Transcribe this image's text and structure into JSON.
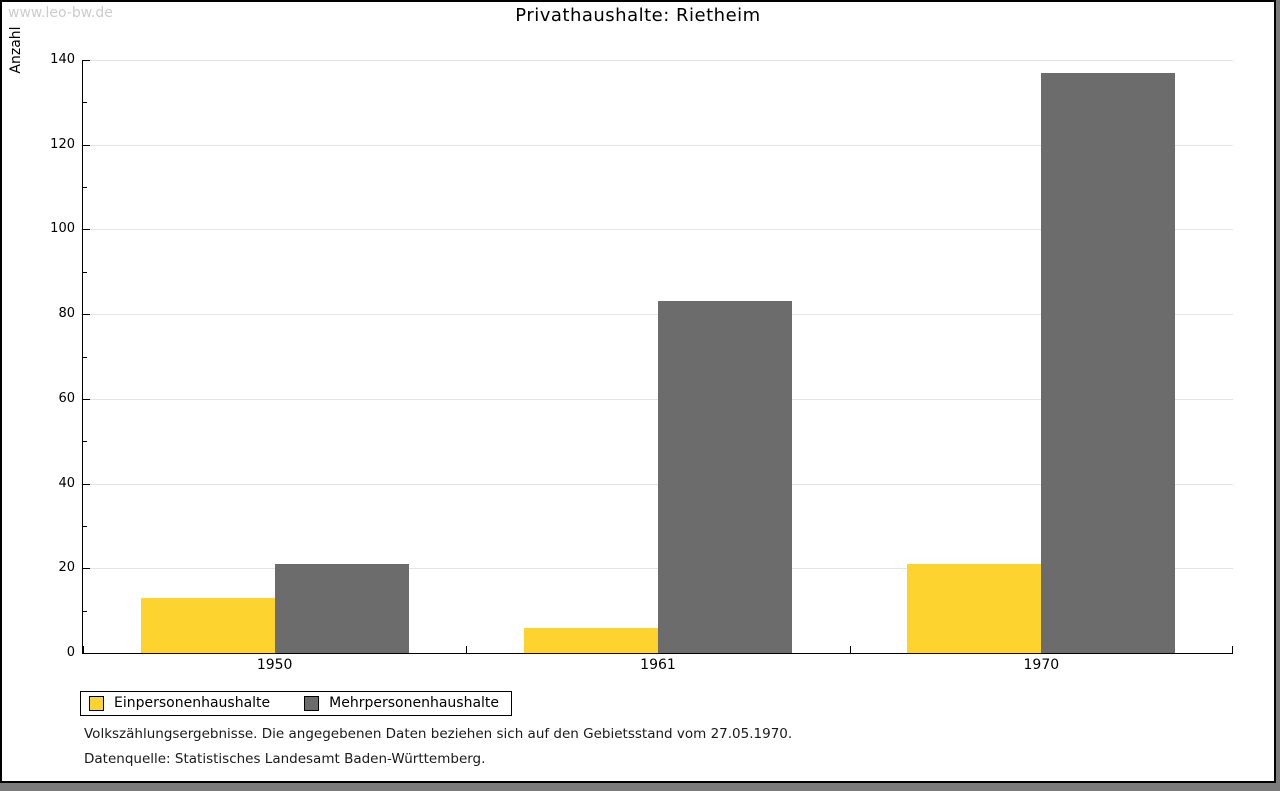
{
  "watermark": "www.leo-bw.de",
  "title": "Privathaushalte: Rietheim",
  "chart_data": {
    "type": "bar",
    "title": "Privathaushalte: Rietheim",
    "categories": [
      "1950",
      "1961",
      "1970"
    ],
    "series": [
      {
        "name": "Einpersonenhaushalte",
        "color": "#fcd32f",
        "values": [
          13,
          6,
          21
        ]
      },
      {
        "name": "Mehrpersonenhaushalte",
        "color": "#6c6c6c",
        "values": [
          21,
          83,
          137
        ]
      }
    ],
    "xlabel": "",
    "ylabel": "Anzahl",
    "ylim": [
      0,
      140
    ],
    "yticks": [
      0,
      20,
      40,
      60,
      80,
      100,
      120,
      140
    ],
    "minor_ytick_step": 10,
    "grid": "horizontal-major",
    "legend_position": "bottom-left",
    "bar_orientation": "vertical"
  },
  "legend": {
    "items": [
      {
        "label": "Einpersonenhaushalte",
        "color": "#fcd32f"
      },
      {
        "label": "Mehrpersonenhaushalte",
        "color": "#6c6c6c"
      }
    ]
  },
  "footnotes": {
    "line1": "Volkszählungsergebnisse. Die angegebenen Daten beziehen sich auf den Gebietsstand vom 27.05.1970.",
    "line2": "Datenquelle: Statistisches Landesamt Baden-Württemberg."
  },
  "colors": {
    "series_1": "#fcd32f",
    "series_2": "#6c6c6c",
    "gridline": "#e4e4e4",
    "axis": "#000000",
    "watermark": "#cccccc",
    "frame_shadow": "#7b7b7b",
    "background": "#ffffff"
  }
}
